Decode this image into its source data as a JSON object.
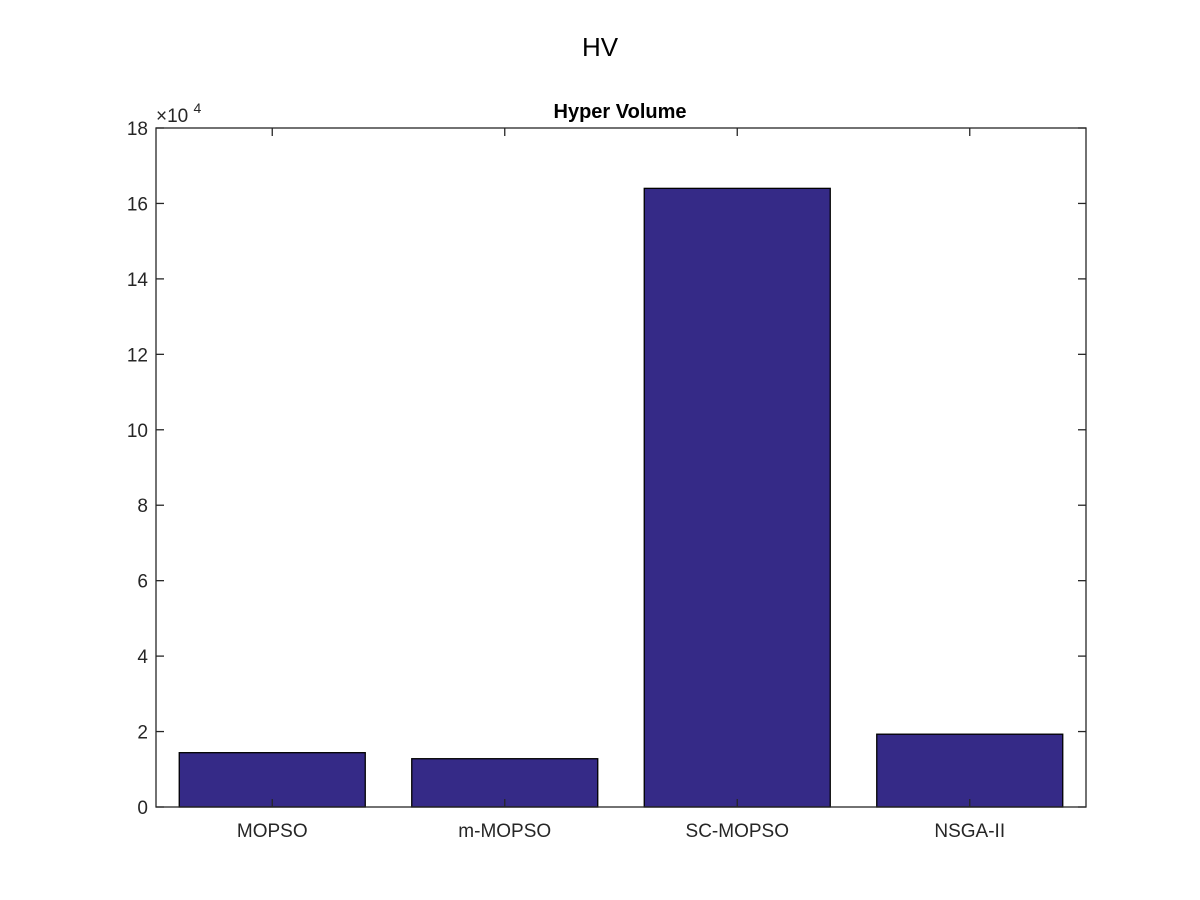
{
  "figure": {
    "supertitle": "HV"
  },
  "chart_data": {
    "type": "bar",
    "title": "Hyper Volume",
    "categories": [
      "MOPSO",
      "m-MOPSO",
      "SC-MOPSO",
      "NSGA-II"
    ],
    "values": [
      14400,
      12800,
      164000,
      19300
    ],
    "xlabel": "",
    "ylabel": "",
    "ylim": [
      0,
      180000
    ],
    "yticks": [
      0,
      2,
      4,
      6,
      8,
      10,
      12,
      14,
      16,
      18
    ],
    "y_exponent_base": "×10",
    "y_exponent_power": "4",
    "bar_color": "#352a87",
    "grid": false,
    "legend": "none"
  }
}
